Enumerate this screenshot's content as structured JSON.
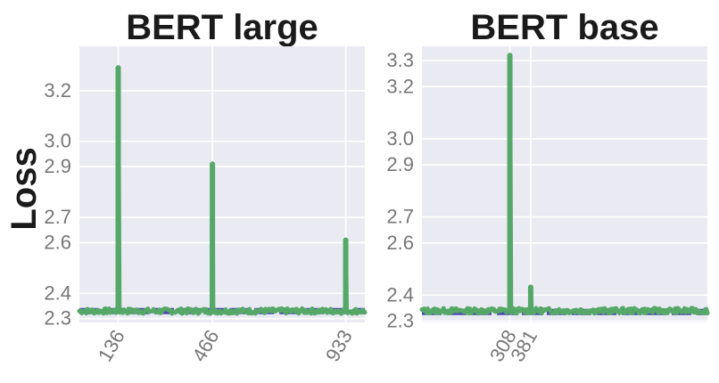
{
  "ylabel": "Loss",
  "chart_data": [
    {
      "type": "line",
      "title": "BERT large",
      "ylabel": "Loss",
      "ylim": [
        2.285,
        3.375
      ],
      "yticks": [
        3.2,
        3.0,
        2.9,
        2.7,
        2.6,
        2.4,
        2.3
      ],
      "xlim": [
        0,
        1000
      ],
      "xticks": [
        136,
        466,
        933
      ],
      "grid": true,
      "series": [
        {
          "kind": "loss",
          "color": "#55a868",
          "baseline": 2.33,
          "x": [
            136,
            466,
            933
          ],
          "values": [
            3.29,
            2.91,
            2.61
          ]
        },
        {
          "kind": "baseline",
          "color": "#4c4ab0",
          "style": "dashed",
          "values": [
            2.33
          ]
        }
      ]
    },
    {
      "type": "line",
      "title": "BERT base",
      "ylabel": "",
      "ylim": [
        2.295,
        3.355
      ],
      "yticks": [
        3.3,
        3.2,
        3.0,
        2.9,
        2.7,
        2.6,
        2.4,
        2.3
      ],
      "xlim": [
        0,
        1000
      ],
      "xticks": [
        308,
        381
      ],
      "grid": true,
      "series": [
        {
          "kind": "loss",
          "color": "#55a868",
          "baseline": 2.34,
          "x": [
            308,
            381
          ],
          "values": [
            3.32,
            2.43
          ]
        },
        {
          "kind": "baseline",
          "color": "#4c4ab0",
          "style": "dashed",
          "values": [
            2.335
          ]
        }
      ]
    }
  ]
}
